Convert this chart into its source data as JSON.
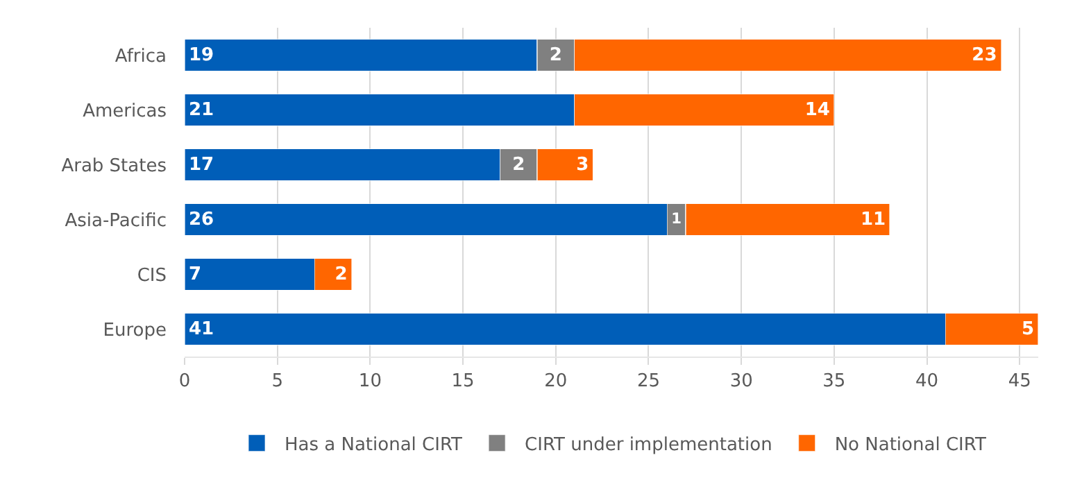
{
  "chart_data": {
    "type": "bar",
    "orientation": "horizontal",
    "stacked": true,
    "categories": [
      "Africa",
      "Americas",
      "Arab States",
      "Asia-Pacific",
      "CIS",
      "Europe"
    ],
    "series": [
      {
        "name": "Has a National CIRT",
        "color": "#005eb8",
        "values": [
          19,
          21,
          17,
          26,
          7,
          41
        ]
      },
      {
        "name": "CIRT under implementation",
        "color": "#808080",
        "values": [
          2,
          null,
          2,
          1,
          null,
          null
        ]
      },
      {
        "name": "No National CIRT",
        "color": "#ff6600",
        "values": [
          23,
          14,
          3,
          11,
          2,
          5
        ]
      }
    ],
    "xlim": [
      0,
      46
    ],
    "xticks": [
      0,
      5,
      10,
      15,
      20,
      25,
      30,
      35,
      40,
      45
    ],
    "grid": "x",
    "legend": "bottom",
    "data_labels": true
  }
}
